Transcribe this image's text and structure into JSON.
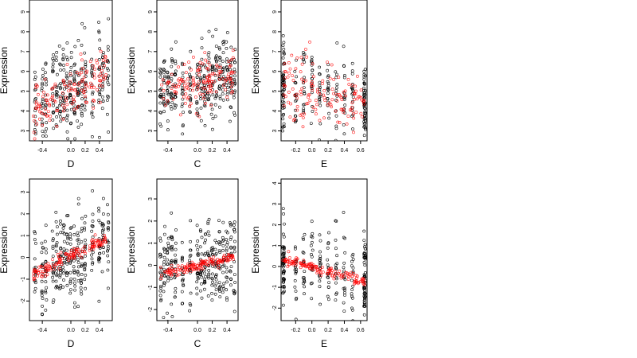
{
  "chart_data": [
    {
      "type": "scatter",
      "panel": "top-D",
      "xlabel": "D",
      "ylabel": "Expression",
      "xlim": [
        -0.58,
        0.58
      ],
      "ylim": [
        2.5,
        9.6
      ],
      "xticks": [
        -0.4,
        0.0,
        0.2,
        0.4
      ],
      "xtick_labels": [
        "-0.4",
        "0.0",
        "0.2",
        "0.4"
      ],
      "yticks": [
        3,
        4,
        5,
        6,
        7,
        8,
        9
      ],
      "ytick_labels": [
        "3",
        "4",
        "5",
        "6",
        "7",
        "8",
        "9"
      ],
      "black_points": {
        "columns": [
          -0.5,
          -0.4,
          -0.35,
          -0.25,
          -0.2,
          -0.15,
          -0.1,
          -0.05,
          0.0,
          0.05,
          0.1,
          0.15,
          0.2,
          0.3,
          0.4,
          0.45,
          0.52
        ],
        "center_start": 4.6,
        "center_end": 5.6,
        "spread": 1.1
      },
      "red_points": {
        "from": [
          -0.52,
          4.0
        ],
        "to": [
          0.5,
          6.0
        ],
        "band": 0.7
      }
    },
    {
      "type": "scatter",
      "panel": "top-C",
      "xlabel": "C",
      "ylabel": "Expression",
      "xlim": [
        -0.55,
        0.55
      ],
      "ylim": [
        2.5,
        9.6
      ],
      "xticks": [
        -0.4,
        0.0,
        0.2,
        0.4
      ],
      "xtick_labels": [
        "-0.4",
        "0.0",
        "0.2",
        "0.4"
      ],
      "yticks": [
        3,
        4,
        5,
        6,
        7,
        8,
        9
      ],
      "ytick_labels": [
        "3",
        "4",
        "5",
        "6",
        "7",
        "8",
        "9"
      ],
      "black_points": {
        "columns": [
          -0.5,
          -0.45,
          -0.4,
          -0.35,
          -0.3,
          -0.2,
          -0.1,
          0.0,
          0.05,
          0.1,
          0.15,
          0.2,
          0.25,
          0.3,
          0.35,
          0.4,
          0.45,
          0.5
        ],
        "center_start": 4.9,
        "center_end": 5.6,
        "spread": 1.0
      },
      "red_points": {
        "from": [
          -0.5,
          5.1
        ],
        "to": [
          0.5,
          5.8
        ],
        "band": 0.6
      }
    },
    {
      "type": "scatter",
      "panel": "top-E",
      "xlabel": "E",
      "ylabel": "Expression",
      "xlim": [
        -0.38,
        0.68
      ],
      "ylim": [
        2.5,
        9.6
      ],
      "xticks": [
        -0.2,
        0.0,
        0.2,
        0.4,
        0.6
      ],
      "xtick_labels": [
        "-0.2",
        "0.0",
        "0.2",
        "0.4",
        "0.6"
      ],
      "yticks": [
        3,
        4,
        5,
        6,
        7,
        8,
        9
      ],
      "ytick_labels": [
        "3",
        "4",
        "5",
        "6",
        "7",
        "8",
        "9"
      ],
      "black_points": {
        "columns": [
          -0.35,
          -0.35,
          -0.35,
          -0.2,
          -0.1,
          0.0,
          0.1,
          0.2,
          0.3,
          0.4,
          0.5,
          0.65,
          0.65,
          0.65
        ],
        "center_start": 5.2,
        "center_end": 4.6,
        "spread": 1.1
      },
      "red_points": {
        "from": [
          -0.35,
          5.5
        ],
        "to": [
          0.65,
          4.3
        ],
        "band": 0.9
      }
    },
    {
      "type": "scatter",
      "panel": "bottom-D",
      "xlabel": "D",
      "ylabel": "Expression",
      "xlim": [
        -0.58,
        0.58
      ],
      "ylim": [
        -2.9,
        3.6
      ],
      "xticks": [
        -0.4,
        0.0,
        0.2,
        0.4
      ],
      "xtick_labels": [
        "-0.4",
        "0.0",
        "0.2",
        "0.4"
      ],
      "yticks": [
        -2,
        -1,
        0,
        1,
        2,
        3
      ],
      "ytick_labels": [
        "-2",
        "-1",
        "0",
        "1",
        "2",
        "3"
      ],
      "black_points": {
        "columns": [
          -0.5,
          -0.4,
          -0.35,
          -0.25,
          -0.2,
          -0.15,
          -0.1,
          -0.05,
          0.0,
          0.05,
          0.1,
          0.15,
          0.2,
          0.3,
          0.4,
          0.45,
          0.52
        ],
        "center_start": -0.6,
        "center_end": 0.6,
        "spread": 1.0
      },
      "red_points": {
        "from": [
          -0.52,
          -0.8
        ],
        "to": [
          0.5,
          0.9
        ],
        "band": 0.15
      }
    },
    {
      "type": "scatter",
      "panel": "bottom-C",
      "xlabel": "C",
      "ylabel": "Expression",
      "xlim": [
        -0.55,
        0.55
      ],
      "ylim": [
        -2.5,
        3.9
      ],
      "xticks": [
        -0.4,
        0.0,
        0.2,
        0.4
      ],
      "xtick_labels": [
        "-0.4",
        "0.0",
        "0.2",
        "0.4"
      ],
      "yticks": [
        -2,
        -1,
        0,
        1,
        2,
        3
      ],
      "ytick_labels": [
        "-2",
        "-1",
        "0",
        "1",
        "2",
        "3"
      ],
      "black_points": {
        "columns": [
          -0.5,
          -0.45,
          -0.4,
          -0.35,
          -0.3,
          -0.2,
          -0.1,
          0.0,
          0.05,
          0.1,
          0.15,
          0.2,
          0.25,
          0.3,
          0.35,
          0.4,
          0.45,
          0.5
        ],
        "center_start": -0.3,
        "center_end": 0.3,
        "spread": 0.9
      },
      "red_points": {
        "from": [
          -0.5,
          -0.35
        ],
        "to": [
          0.5,
          0.35
        ],
        "band": 0.12
      }
    },
    {
      "type": "scatter",
      "panel": "bottom-E",
      "xlabel": "E",
      "ylabel": "Expression",
      "xlim": [
        -0.38,
        0.68
      ],
      "ylim": [
        -2.6,
        4.2
      ],
      "xticks": [
        -0.2,
        0.0,
        0.2,
        0.4,
        0.6
      ],
      "xtick_labels": [
        "-0.2",
        "0.0",
        "0.2",
        "0.4",
        "0.6"
      ],
      "yticks": [
        -2,
        -1,
        0,
        1,
        2,
        3,
        4
      ],
      "ytick_labels": [
        "-2",
        "-1",
        "0",
        "1",
        "2",
        "3",
        "4"
      ],
      "black_points": {
        "columns": [
          -0.35,
          -0.35,
          -0.35,
          -0.2,
          -0.1,
          0.0,
          0.1,
          0.2,
          0.3,
          0.4,
          0.5,
          0.65,
          0.65,
          0.65
        ],
        "center_start": 0.3,
        "center_end": -0.6,
        "spread": 1.0
      },
      "red_points": {
        "from": [
          -0.35,
          0.35
        ],
        "to": [
          0.65,
          -0.75
        ],
        "band": 0.12
      }
    }
  ],
  "colors": {
    "black_points": "#000000",
    "red_points": "#ff0000",
    "axis": "#000000"
  }
}
